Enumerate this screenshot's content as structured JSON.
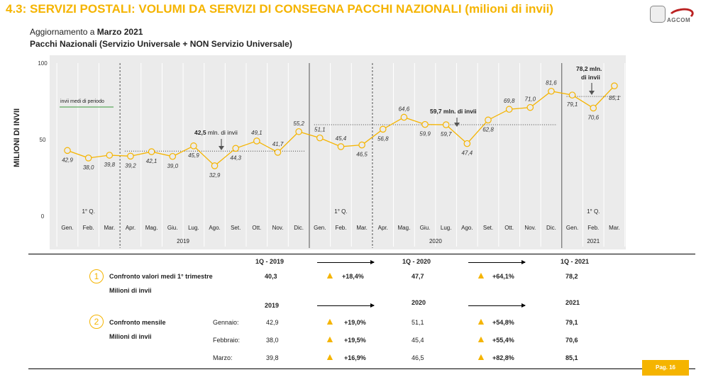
{
  "header": {
    "title": "4.3: SERVIZI POSTALI: VOLUMI DA SERVIZI DI CONSEGNA PACCHI NAZIONALI (milioni di invii)",
    "update_prefix": "Aggiornamento a",
    "update_date": "Marzo 2021",
    "subtitle": "Pacchi Nazionali (Servizio Universale + NON Servizio Universale)",
    "logo_text": "AGCOM"
  },
  "chart_data": {
    "type": "line",
    "ylabel": "MILIONI DI INVII",
    "ylim": [
      0,
      100
    ],
    "yticks": [
      "0",
      "50",
      "100"
    ],
    "categories": [
      "Gen.",
      "Feb.",
      "Mar.",
      "Apr.",
      "Mag.",
      "Giu.",
      "Lug.",
      "Ago.",
      "Set.",
      "Ott.",
      "Nov.",
      "Dic.",
      "Gen.",
      "Feb.",
      "Mar.",
      "Apr.",
      "Mag.",
      "Giu.",
      "Lug.",
      "Ago.",
      "Set.",
      "Ott.",
      "Nov.",
      "Dic.",
      "Gen.",
      "Feb.",
      "Mar."
    ],
    "values": [
      42.9,
      38.0,
      39.8,
      39.2,
      42.1,
      39.0,
      45.9,
      32.9,
      44.3,
      49.1,
      41.7,
      55.2,
      51.1,
      45.4,
      46.5,
      56.8,
      64.6,
      59.9,
      59.7,
      47.4,
      62.8,
      69.8,
      71.0,
      81.6,
      79.1,
      70.6,
      85.1
    ],
    "value_labels": [
      "42,9",
      "38,0",
      "39,8",
      "39,2",
      "42,1",
      "39,0",
      "45,9",
      "32,9",
      "44,3",
      "49,1",
      "41,7",
      "55,2",
      "51,1",
      "45,4",
      "46,5",
      "56,8",
      "64,6",
      "59,9",
      "59,7",
      "47,4",
      "62,8",
      "69,8",
      "71,0",
      "81,6",
      "79,1",
      "70,6",
      "85,1"
    ],
    "years": [
      "2019",
      "2020",
      "2021"
    ],
    "quarter_labels": [
      "1° Q.",
      "1° Q.",
      "1° Q."
    ],
    "averages": [
      {
        "value": 42.5,
        "label_bold": "42,5",
        "label_rest": " mln. di invii"
      },
      {
        "value": 59.7,
        "label_bold": "59,7 mln. di invii",
        "label_rest": ""
      },
      {
        "value": 78.2,
        "label_bold": "78,2 mln. di invii",
        "label_rest": ""
      }
    ],
    "legend": "invii medi di periodo",
    "series_color": "#f5b400"
  },
  "summary": {
    "circle1": "1",
    "circle2": "2",
    "row1_title": "Confronto valori medi 1° trimestre",
    "row1_sub": "Milioni di invii",
    "row1_headers": [
      "1Q - 2019",
      "1Q - 2020",
      "1Q - 2021"
    ],
    "row1_values": [
      "40,3",
      "47,7",
      "78,2"
    ],
    "row1_changes": [
      "+18,4%",
      "+64,1%"
    ],
    "row2_title": "Confronto mensile",
    "row2_sub": "Milioni di invii",
    "row2_headers": [
      "2019",
      "2020",
      "2021"
    ],
    "row2_months": [
      "Gennaio:",
      "Febbraio:",
      "Marzo:"
    ],
    "row2_v2019": [
      "42,9",
      "38,0",
      "39,8"
    ],
    "row2_ch1": [
      "+19,0%",
      "+19,5%",
      "+16,9%"
    ],
    "row2_v2020": [
      "51,1",
      "45,4",
      "46,5"
    ],
    "row2_ch2": [
      "+54,8%",
      "+55,4%",
      "+82,8%"
    ],
    "row2_v2021": [
      "79,1",
      "70,6",
      "85,1"
    ]
  },
  "footer": {
    "page": "Pag. 16"
  }
}
